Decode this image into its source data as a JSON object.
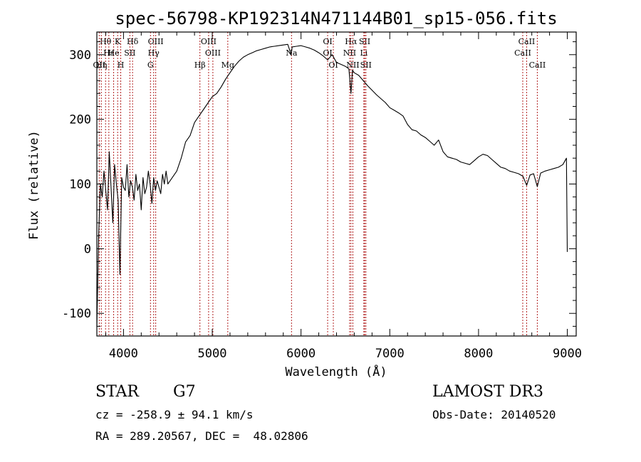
{
  "chart_data": {
    "type": "line",
    "title": "spec-56798-KP192314N471144B01_sp15-056.fits",
    "xlabel": "Wavelength (Å)",
    "ylabel": "Flux (relative)",
    "xlim": [
      3700,
      9100
    ],
    "ylim": [
      -135,
      335
    ],
    "x_ticks": [
      4000,
      5000,
      6000,
      7000,
      8000,
      9000
    ],
    "y_ticks": [
      -100,
      0,
      100,
      200,
      300
    ],
    "grid": false,
    "series": [
      {
        "x": [
          3700,
          3720,
          3740,
          3760,
          3780,
          3800,
          3820,
          3840,
          3860,
          3880,
          3900,
          3920,
          3940,
          3960,
          3980,
          4000,
          4020,
          4040,
          4060,
          4080,
          4100,
          4120,
          4140,
          4160,
          4180,
          4200,
          4220,
          4240,
          4260,
          4280,
          4300,
          4320,
          4340,
          4360,
          4380,
          4400,
          4420,
          4440,
          4460,
          4480,
          4500,
          4550,
          4600,
          4650,
          4700,
          4750,
          4800,
          4850,
          4900,
          4950,
          5000,
          5050,
          5100,
          5150,
          5200,
          5250,
          5300,
          5350,
          5400,
          5450,
          5500,
          5550,
          5600,
          5650,
          5700,
          5750,
          5800,
          5850,
          5890,
          5900,
          5950,
          6000,
          6050,
          6100,
          6150,
          6200,
          6250,
          6300,
          6350,
          6400,
          6450,
          6500,
          6540,
          6563,
          6580,
          6600,
          6650,
          6700,
          6750,
          6800,
          6850,
          6900,
          6950,
          7000,
          7050,
          7100,
          7150,
          7200,
          7250,
          7300,
          7350,
          7400,
          7450,
          7500,
          7550,
          7600,
          7650,
          7700,
          7750,
          7800,
          7850,
          7900,
          7950,
          8000,
          8050,
          8100,
          8150,
          8200,
          8250,
          8300,
          8350,
          8400,
          8450,
          8500,
          8542,
          8580,
          8620,
          8662,
          8700,
          8750,
          8800,
          8850,
          8900,
          8950,
          8990,
          9000
        ],
        "values": [
          -120,
          20,
          100,
          80,
          120,
          90,
          60,
          150,
          95,
          40,
          130,
          100,
          75,
          -40,
          110,
          95,
          90,
          130,
          80,
          105,
          95,
          75,
          115,
          90,
          100,
          60,
          110,
          85,
          95,
          120,
          100,
          70,
          110,
          90,
          105,
          95,
          85,
          115,
          100,
          120,
          100,
          110,
          120,
          140,
          165,
          175,
          195,
          205,
          215,
          225,
          235,
          240,
          250,
          262,
          272,
          282,
          290,
          296,
          300,
          303,
          306,
          308,
          310,
          312,
          313,
          314,
          315,
          316,
          300,
          312,
          313,
          314,
          312,
          310,
          307,
          303,
          298,
          292,
          300,
          288,
          285,
          282,
          278,
          240,
          276,
          272,
          268,
          260,
          252,
          245,
          238,
          232,
          226,
          218,
          214,
          210,
          205,
          192,
          184,
          182,
          176,
          172,
          166,
          160,
          168,
          150,
          142,
          140,
          138,
          134,
          132,
          130,
          136,
          142,
          146,
          144,
          138,
          132,
          126,
          124,
          120,
          118,
          116,
          112,
          98,
          114,
          116,
          96,
          117,
          120,
          122,
          124,
          126,
          130,
          140,
          -5
        ]
      }
    ],
    "spectral_lines": {
      "top_row": [
        {
          "label": "Hθ",
          "x": 3798
        },
        {
          "label": "K",
          "x": 3934
        },
        {
          "label": "Hδ",
          "x": 4102
        },
        {
          "label": "OIII",
          "x": 4363
        },
        {
          "label": "OIII",
          "x": 4959
        },
        {
          "label": "OI",
          "x": 6300
        },
        {
          "label": "Hα",
          "x": 6563
        },
        {
          "label": "SII",
          "x": 6717
        },
        {
          "label": "CaII",
          "x": 8542
        }
      ],
      "middle_row": [
        {
          "label": "Hε",
          "x": 3835
        },
        {
          "label": "He",
          "x": 3889
        },
        {
          "label": "SII",
          "x": 4072
        },
        {
          "label": "Hγ",
          "x": 4340
        },
        {
          "label": "OIII",
          "x": 5007
        },
        {
          "label": "Na",
          "x": 5893
        },
        {
          "label": "OI",
          "x": 6300
        },
        {
          "label": "NII",
          "x": 6548
        },
        {
          "label": "Li",
          "x": 6708
        },
        {
          "label": "CaII",
          "x": 8498
        }
      ],
      "bottom_row": [
        {
          "label": "OII",
          "x": 3727
        },
        {
          "label": "Hη",
          "x": 3750
        },
        {
          "label": "H",
          "x": 3969
        },
        {
          "label": "G",
          "x": 4304
        },
        {
          "label": "Hβ",
          "x": 4861
        },
        {
          "label": "Mg",
          "x": 5175
        },
        {
          "label": "OI",
          "x": 6364
        },
        {
          "label": "NII",
          "x": 6584
        },
        {
          "label": "SII",
          "x": 6731
        },
        {
          "label": "CaII",
          "x": 8662
        }
      ]
    }
  },
  "footer": {
    "object_class": "STAR",
    "subclass": "G7",
    "survey": "LAMOST DR3",
    "cz_line": "cz = -258.9 ± 94.1 km/s",
    "obs_date": "Obs-Date: 20140520",
    "coords_line": "RA = 289.20567, DEC =  48.02806"
  }
}
